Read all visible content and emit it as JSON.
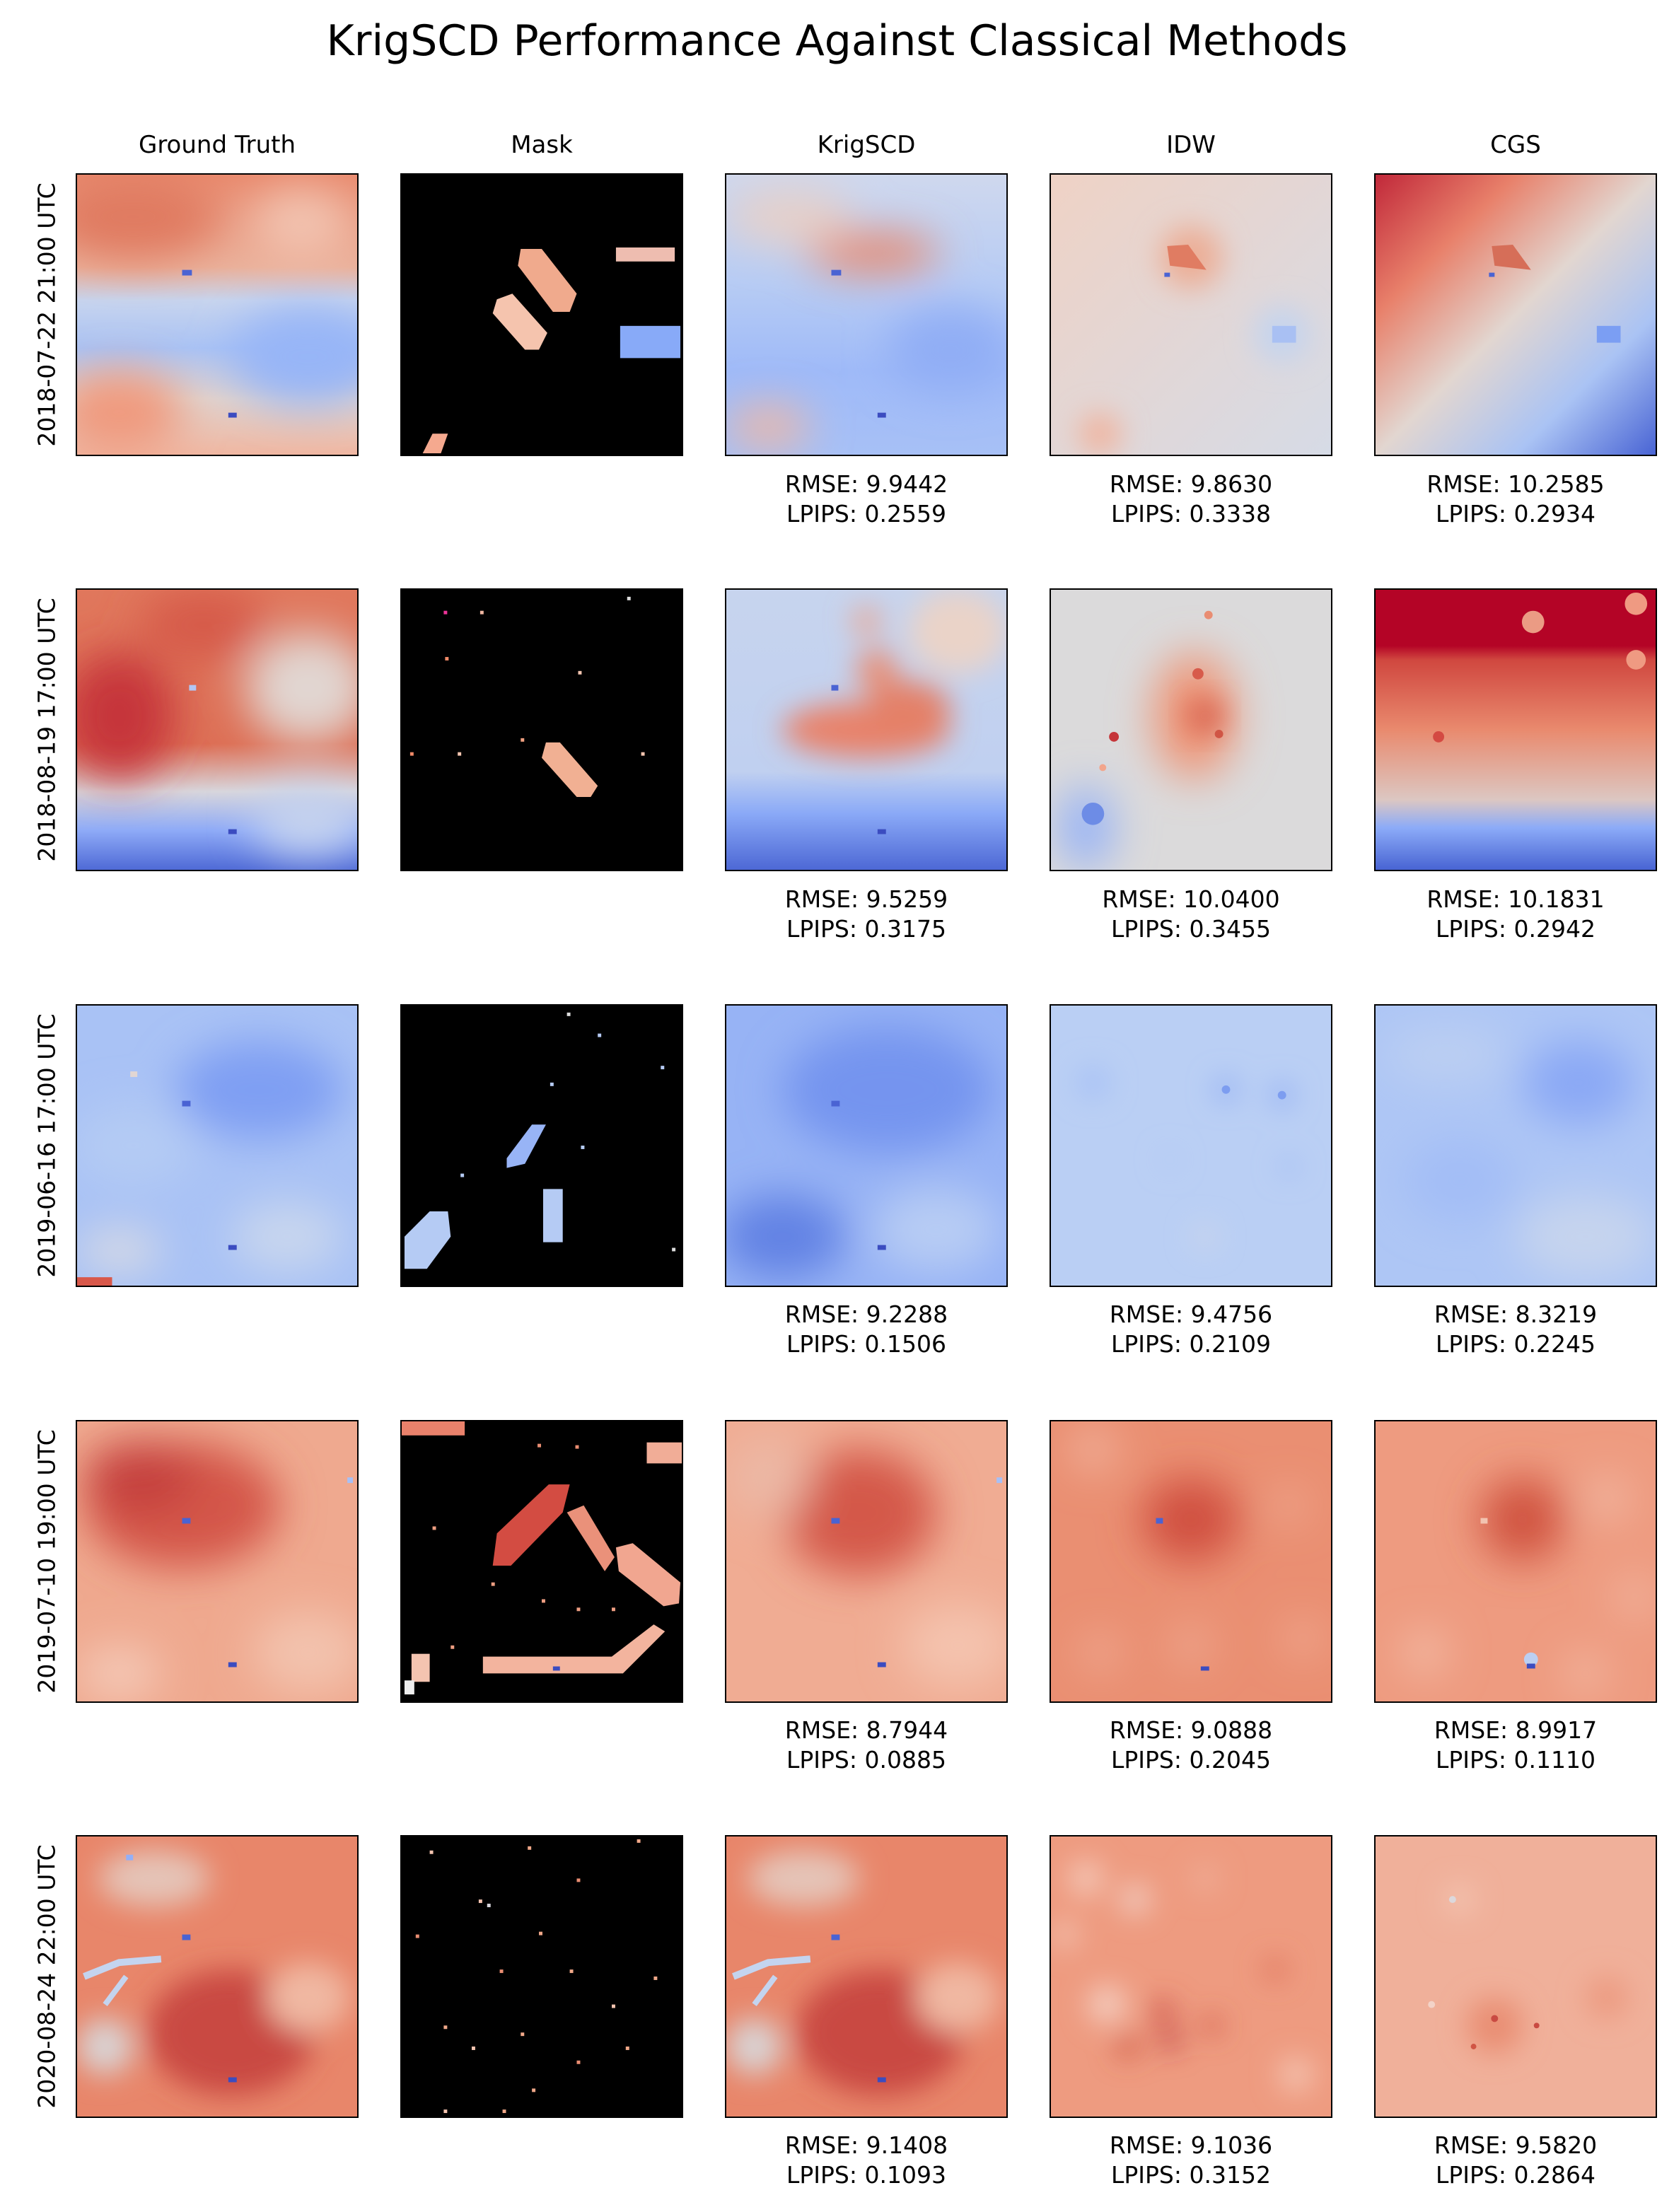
{
  "chart_data": {
    "type": "heatmap",
    "title": "KrigSCD Performance Against Classical Methods",
    "columns": [
      "Ground Truth",
      "Mask",
      "KrigSCD",
      "IDW",
      "CGS"
    ],
    "colormap": "coolwarm",
    "colors": {
      "cold": "#3b4cc0",
      "neutral": "#dddddd",
      "warm": "#b40426",
      "mask_background": "#000000",
      "frame": "#000000"
    },
    "rows": [
      {
        "label": "2018-07-22 21:00 UTC",
        "panels": [
          {
            "method": "Ground Truth",
            "description": "warm north, cool band across middle, warm patches south-west"
          },
          {
            "method": "Mask",
            "observed": "diagonal strips and blocks"
          },
          {
            "method": "KrigSCD",
            "metrics": {
              "rmse": "RMSE: 9.9442",
              "lpips": "LPIPS: 0.2559"
            }
          },
          {
            "method": "IDW",
            "metrics": {
              "rmse": "RMSE: 9.8630",
              "lpips": "LPIPS: 0.3338"
            }
          },
          {
            "method": "CGS",
            "metrics": {
              "rmse": "RMSE: 10.2585",
              "lpips": "LPIPS: 0.2934"
            }
          }
        ]
      },
      {
        "label": "2018-08-19 17:00 UTC",
        "panels": [
          {
            "method": "Ground Truth"
          },
          {
            "method": "Mask",
            "observed": "one diagonal strip and scattered points"
          },
          {
            "method": "KrigSCD",
            "metrics": {
              "rmse": "RMSE: 9.5259",
              "lpips": "LPIPS: 0.3175"
            }
          },
          {
            "method": "IDW",
            "metrics": {
              "rmse": "RMSE: 10.0400",
              "lpips": "LPIPS: 0.3455"
            }
          },
          {
            "method": "CGS",
            "metrics": {
              "rmse": "RMSE: 10.1831",
              "lpips": "LPIPS: 0.2942"
            }
          }
        ]
      },
      {
        "label": "2019-06-16 17:00 UTC",
        "panels": [
          {
            "method": "Ground Truth"
          },
          {
            "method": "Mask",
            "observed": "diagonal strips, a vertical bar and points"
          },
          {
            "method": "KrigSCD",
            "metrics": {
              "rmse": "RMSE: 9.2288",
              "lpips": "LPIPS: 0.1506"
            }
          },
          {
            "method": "IDW",
            "metrics": {
              "rmse": "RMSE: 9.4756",
              "lpips": "LPIPS: 0.2109"
            }
          },
          {
            "method": "CGS",
            "metrics": {
              "rmse": "RMSE: 8.3219",
              "lpips": "LPIPS: 0.2245"
            }
          }
        ]
      },
      {
        "label": "2019-07-10 19:00 UTC",
        "panels": [
          {
            "method": "Ground Truth"
          },
          {
            "method": "Mask",
            "observed": "chevron strips, bottom strip and points"
          },
          {
            "method": "KrigSCD",
            "metrics": {
              "rmse": "RMSE: 8.7944",
              "lpips": "LPIPS: 0.0885"
            }
          },
          {
            "method": "IDW",
            "metrics": {
              "rmse": "RMSE: 9.0888",
              "lpips": "LPIPS: 0.2045"
            }
          },
          {
            "method": "CGS",
            "metrics": {
              "rmse": "RMSE: 8.9917",
              "lpips": "LPIPS: 0.1110"
            }
          }
        ]
      },
      {
        "label": "2020-08-24 22:00 UTC",
        "panels": [
          {
            "method": "Ground Truth"
          },
          {
            "method": "Mask",
            "observed": "sparse scattered points"
          },
          {
            "method": "KrigSCD",
            "metrics": {
              "rmse": "RMSE: 9.1408",
              "lpips": "LPIPS: 0.1093"
            }
          },
          {
            "method": "IDW",
            "metrics": {
              "rmse": "RMSE: 9.1036",
              "lpips": "LPIPS: 0.3152"
            }
          },
          {
            "method": "CGS",
            "metrics": {
              "rmse": "RMSE: 9.5820",
              "lpips": "LPIPS: 0.2864"
            }
          }
        ]
      }
    ]
  }
}
